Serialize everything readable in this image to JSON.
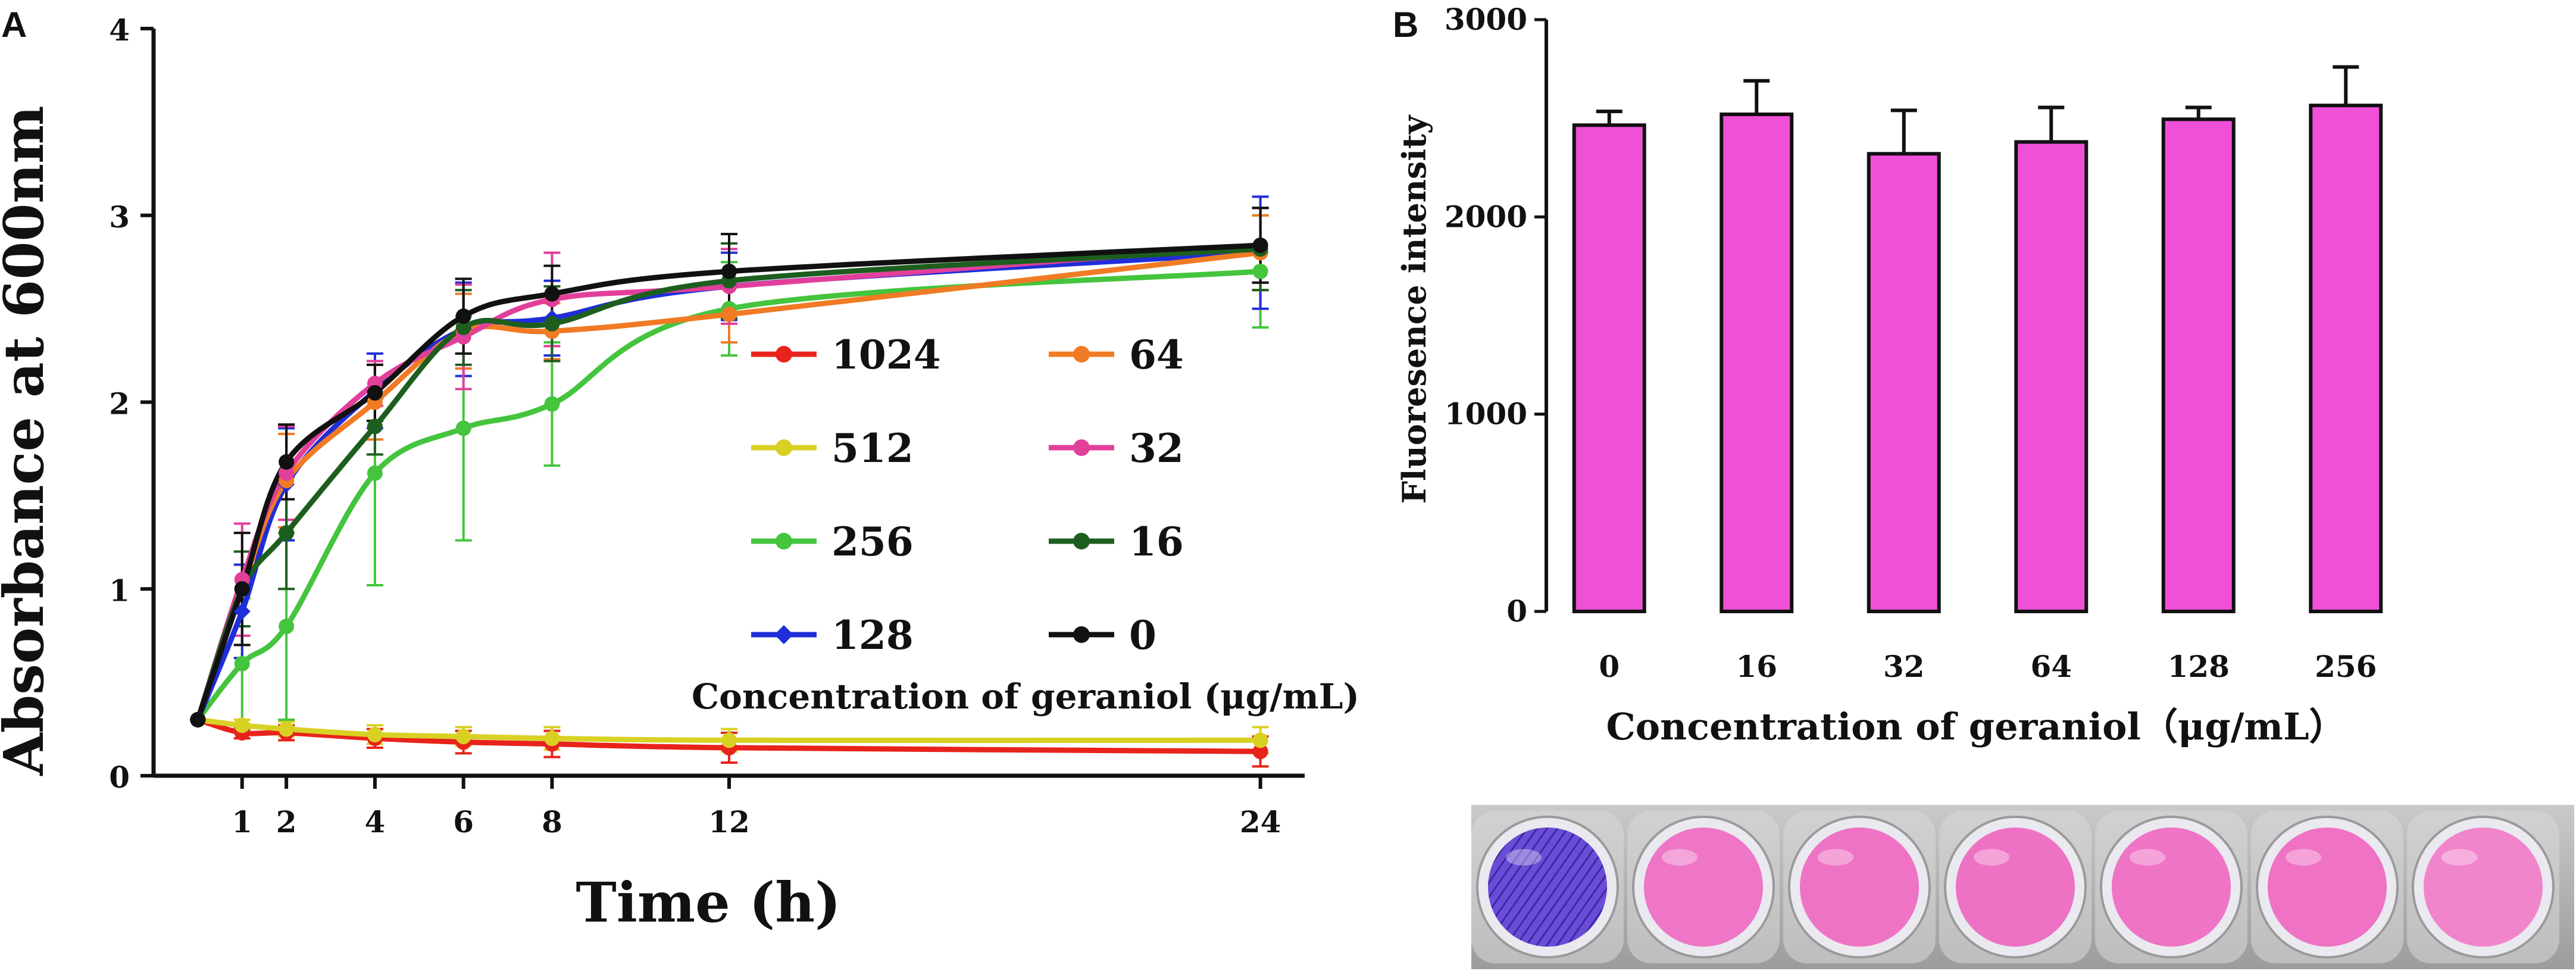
{
  "panel_a": {
    "letter": "A",
    "chart_data": {
      "type": "line",
      "title": "",
      "xlabel": "Time (h)",
      "ylabel": "Absorbance at 600nm",
      "xlim": [
        -1,
        25
      ],
      "ylim": [
        0,
        4
      ],
      "x_ticks": [
        1,
        2,
        4,
        6,
        8,
        12,
        24
      ],
      "y_ticks": [
        0,
        1,
        2,
        3,
        4
      ],
      "legend_title": "Concentration of geraniol  (μg/mL)",
      "x": [
        0,
        1,
        2,
        4,
        6,
        8,
        12,
        24
      ],
      "series": [
        {
          "name": "1024",
          "color": "#e8231b",
          "marker": "circle",
          "values": [
            0.3,
            0.23,
            0.23,
            0.2,
            0.18,
            0.17,
            0.15,
            0.13
          ],
          "errors": [
            0,
            0.03,
            0.04,
            0.05,
            0.06,
            0.07,
            0.08,
            0.08
          ]
        },
        {
          "name": "512",
          "color": "#d8d124",
          "marker": "circle",
          "values": [
            0.3,
            0.27,
            0.25,
            0.22,
            0.21,
            0.2,
            0.19,
            0.19
          ],
          "errors": [
            0,
            0.03,
            0.04,
            0.05,
            0.05,
            0.06,
            0.06,
            0.07
          ]
        },
        {
          "name": "256",
          "color": "#45c43e",
          "marker": "circle",
          "values": [
            0.3,
            0.6,
            0.8,
            1.62,
            1.86,
            1.99,
            2.5,
            2.7
          ],
          "errors": [
            0,
            0.35,
            0.5,
            0.6,
            0.6,
            0.33,
            0.25,
            0.3
          ]
        },
        {
          "name": "128",
          "color": "#1f2ed8",
          "marker": "diamond",
          "values": [
            0.3,
            0.88,
            1.56,
            2.06,
            2.39,
            2.45,
            2.62,
            2.8
          ],
          "errors": [
            0,
            0.25,
            0.3,
            0.2,
            0.25,
            0.2,
            0.18,
            0.3
          ]
        },
        {
          "name": "64",
          "color": "#f07b24",
          "marker": "circle",
          "values": [
            0.3,
            1.0,
            1.58,
            2.0,
            2.38,
            2.38,
            2.47,
            2.8
          ],
          "errors": [
            0,
            0.2,
            0.25,
            0.2,
            0.2,
            0.15,
            0.15,
            0.2
          ]
        },
        {
          "name": "32",
          "color": "#e23f9a",
          "marker": "circle",
          "values": [
            0.3,
            1.05,
            1.62,
            2.1,
            2.35,
            2.55,
            2.62,
            2.84
          ],
          "errors": [
            0,
            0.3,
            0.25,
            0.12,
            0.28,
            0.25,
            0.2,
            0.2
          ]
        },
        {
          "name": "16",
          "color": "#1d5e1f",
          "marker": "circle",
          "values": [
            0.3,
            1.0,
            1.3,
            1.87,
            2.4,
            2.42,
            2.65,
            2.82
          ],
          "errors": [
            0,
            0.2,
            0.3,
            0.15,
            0.2,
            0.2,
            0.2,
            0.22
          ]
        },
        {
          "name": "0",
          "color": "#111111",
          "marker": "circle",
          "values": [
            0.3,
            1.0,
            1.68,
            2.05,
            2.46,
            2.58,
            2.7,
            2.84
          ],
          "errors": [
            0,
            0.3,
            0.2,
            0.15,
            0.2,
            0.15,
            0.2,
            0.2
          ]
        }
      ]
    }
  },
  "panel_b": {
    "letter": "B",
    "chart_data": {
      "type": "bar",
      "title": "",
      "xlabel": "Concentration of geraniol（μg/mL）",
      "ylabel": "Fluoresence intensity",
      "ylim": [
        0,
        3000
      ],
      "y_ticks": [
        0,
        1000,
        2000,
        3000
      ],
      "categories": [
        "0",
        "16",
        "32",
        "64",
        "128",
        "256"
      ],
      "values": [
        2465,
        2520,
        2320,
        2380,
        2495,
        2565
      ],
      "errors": [
        70,
        170,
        220,
        175,
        60,
        195
      ],
      "bar_color": "#f04fd8"
    }
  },
  "photo": {
    "well_colors": [
      "#6a4cd6",
      "#ef75c6",
      "#ef73c5",
      "#ee72c4",
      "#ef74c6",
      "#ef72c4",
      "#f185cc"
    ]
  }
}
